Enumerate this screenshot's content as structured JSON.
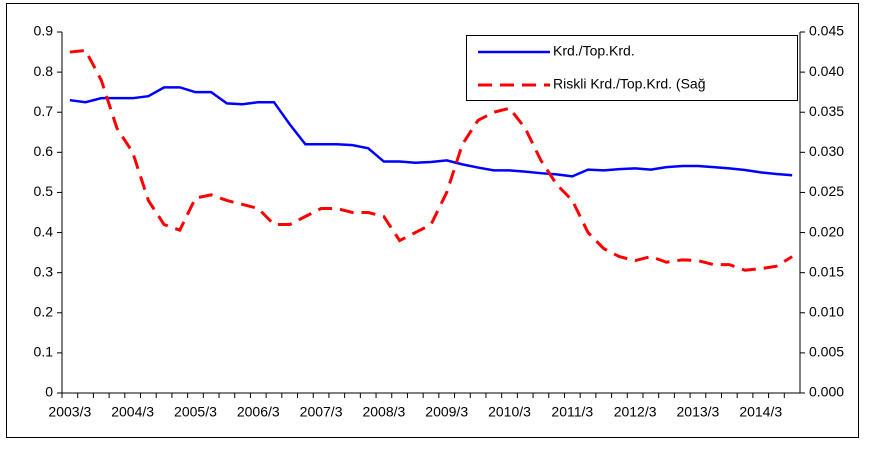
{
  "chart_data": {
    "type": "line",
    "categories": [
      "2003/3",
      null,
      null,
      null,
      "2004/3",
      null,
      null,
      null,
      "2005/3",
      null,
      null,
      null,
      "2006/3",
      null,
      null,
      null,
      "2007/3",
      null,
      null,
      null,
      "2008/3",
      null,
      null,
      null,
      "2009/3",
      null,
      null,
      null,
      "2010/3",
      null,
      null,
      null,
      "2011/3",
      null,
      null,
      null,
      "2012/3",
      null,
      null,
      null,
      "2013/3",
      null,
      null,
      null,
      "2014/3",
      null,
      null
    ],
    "series": [
      {
        "name": "Krd./Top.Krd.",
        "color": "#0000ff",
        "dash": false,
        "axis": "y",
        "values": [
          0.73,
          0.725,
          0.735,
          0.735,
          0.735,
          0.74,
          0.762,
          0.762,
          0.75,
          0.75,
          0.722,
          0.72,
          0.725,
          0.725,
          0.67,
          0.62,
          0.62,
          0.62,
          0.618,
          0.61,
          0.577,
          0.577,
          0.574,
          0.576,
          0.58,
          0.57,
          0.562,
          0.555,
          0.555,
          0.552,
          0.548,
          0.545,
          0.54,
          0.557,
          0.555,
          0.558,
          0.56,
          0.557,
          0.563,
          0.566,
          0.566,
          0.563,
          0.56,
          0.556,
          0.55,
          0.546,
          0.543
        ]
      },
      {
        "name": "Riskli Krd./Top.Krd. (Sağ",
        "color": "#ff0000",
        "dash": true,
        "axis": "y2",
        "values": [
          0.0425,
          0.0427,
          0.039,
          0.033,
          0.03,
          0.024,
          0.021,
          0.0203,
          0.0243,
          0.0247,
          0.024,
          0.0235,
          0.023,
          0.021,
          0.021,
          0.022,
          0.023,
          0.023,
          0.0225,
          0.0225,
          0.022,
          0.019,
          0.02,
          0.021,
          0.025,
          0.031,
          0.034,
          0.035,
          0.0355,
          0.033,
          0.029,
          0.026,
          0.024,
          0.02,
          0.018,
          0.017,
          0.0165,
          0.017,
          0.0163,
          0.0166,
          0.0165,
          0.016,
          0.016,
          0.0153,
          0.0155,
          0.0158,
          0.017
        ]
      }
    ],
    "ylim": [
      0,
      0.9
    ],
    "yticks": [
      0,
      0.1,
      0.2,
      0.3,
      0.4,
      0.5,
      0.6,
      0.7,
      0.8,
      0.9
    ],
    "y2lim": [
      0,
      0.045
    ],
    "y2ticks": [
      {
        "value": 0,
        "label": "0.000"
      },
      {
        "value": 0.005,
        "label": "0.005"
      },
      {
        "value": 0.01,
        "label": "0.010"
      },
      {
        "value": 0.015,
        "label": "0.015"
      },
      {
        "value": 0.02,
        "label": "0.020"
      },
      {
        "value": 0.025,
        "label": "0.025"
      },
      {
        "value": 0.03,
        "label": "0.030"
      },
      {
        "value": 0.035,
        "label": "0.035"
      },
      {
        "value": 0.04,
        "label": "0.040"
      },
      {
        "value": 0.045,
        "label": "0.045"
      }
    ],
    "grid": false,
    "legend": "top-right"
  }
}
